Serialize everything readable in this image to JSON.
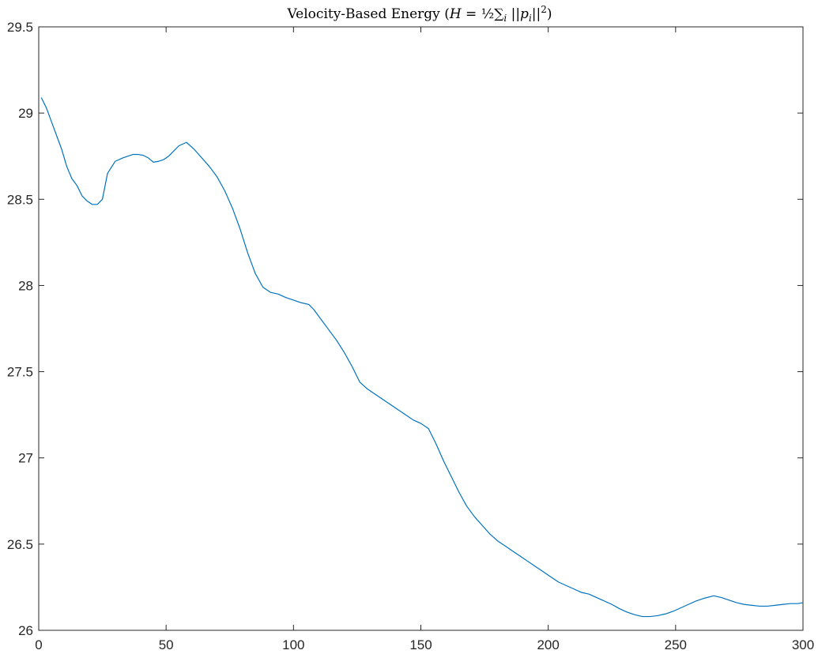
{
  "chart_data": {
    "type": "line",
    "title": "Velocity-Based Energy (H = ½ ∑ᵢ ||pᵢ||²)",
    "title_parts": {
      "text": "Velocity-Based Energy (",
      "math_h": "H",
      "math_eq": " = ",
      "math_frac": "½",
      "math_sum": "∑",
      "math_sub_i": "i",
      "math_norm_open": " ||p",
      "math_sub_pi": "i",
      "math_norm_close": "||",
      "math_sup": "2",
      "text_close": ")"
    },
    "xlabel": "",
    "ylabel": "",
    "xlim": [
      0,
      300
    ],
    "ylim": [
      26,
      29.5
    ],
    "xticks": [
      0,
      50,
      100,
      150,
      200,
      250,
      300
    ],
    "xtick_labels": [
      "0",
      "50",
      "100",
      "150",
      "200",
      "250",
      "300"
    ],
    "yticks": [
      26,
      26.5,
      27,
      27.5,
      28,
      28.5,
      29,
      29.5
    ],
    "ytick_labels": [
      "26",
      "26.5",
      "27",
      "27.5",
      "28",
      "28.5",
      "29",
      "29.5"
    ],
    "grid": false,
    "line_color": "#0072BD",
    "axis_color": "#262626",
    "series": [
      {
        "x": [
          1,
          3,
          5,
          7,
          9,
          11,
          13,
          15,
          17,
          19,
          21,
          23,
          25,
          27,
          30,
          33,
          35,
          37,
          39,
          41,
          43,
          45,
          47,
          49,
          51,
          53,
          55,
          58,
          61,
          64,
          67,
          70,
          73,
          76,
          79,
          82,
          85,
          88,
          91,
          94,
          97,
          100,
          103,
          106,
          108,
          111,
          114,
          117,
          120,
          123,
          126,
          129,
          132,
          135,
          138,
          141,
          144,
          147,
          150,
          153,
          156,
          159,
          162,
          165,
          168,
          171,
          174,
          177,
          180,
          183,
          186,
          189,
          192,
          195,
          198,
          201,
          204,
          207,
          210,
          213,
          216,
          219,
          222,
          225,
          228,
          231,
          234,
          237,
          240,
          243,
          246,
          249,
          252,
          255,
          258,
          261,
          265,
          268,
          271,
          274,
          277,
          280,
          283,
          286,
          289,
          292,
          295,
          298,
          300
        ],
        "y": [
          29.09,
          29.03,
          28.95,
          28.87,
          28.79,
          28.69,
          28.62,
          28.58,
          28.52,
          28.49,
          28.47,
          28.47,
          28.5,
          28.65,
          28.72,
          28.74,
          28.75,
          28.76,
          28.76,
          28.755,
          28.74,
          28.715,
          28.72,
          28.73,
          28.75,
          28.78,
          28.81,
          28.83,
          28.79,
          28.74,
          28.69,
          28.63,
          28.55,
          28.45,
          28.33,
          28.19,
          28.07,
          27.99,
          27.96,
          27.95,
          27.93,
          27.915,
          27.9,
          27.89,
          27.86,
          27.8,
          27.74,
          27.68,
          27.61,
          27.53,
          27.44,
          27.4,
          27.37,
          27.34,
          27.31,
          27.28,
          27.25,
          27.22,
          27.2,
          27.17,
          27.08,
          26.98,
          26.89,
          26.8,
          26.72,
          26.66,
          26.61,
          26.56,
          26.52,
          26.49,
          26.46,
          26.43,
          26.4,
          26.37,
          26.34,
          26.31,
          26.28,
          26.26,
          26.24,
          26.22,
          26.21,
          26.19,
          26.17,
          26.15,
          26.125,
          26.105,
          26.09,
          26.08,
          26.08,
          26.085,
          26.095,
          26.11,
          26.13,
          26.15,
          26.17,
          26.185,
          26.2,
          26.19,
          26.175,
          26.16,
          26.15,
          26.145,
          26.14,
          26.14,
          26.145,
          26.15,
          26.155,
          26.155,
          26.16
        ]
      }
    ]
  }
}
